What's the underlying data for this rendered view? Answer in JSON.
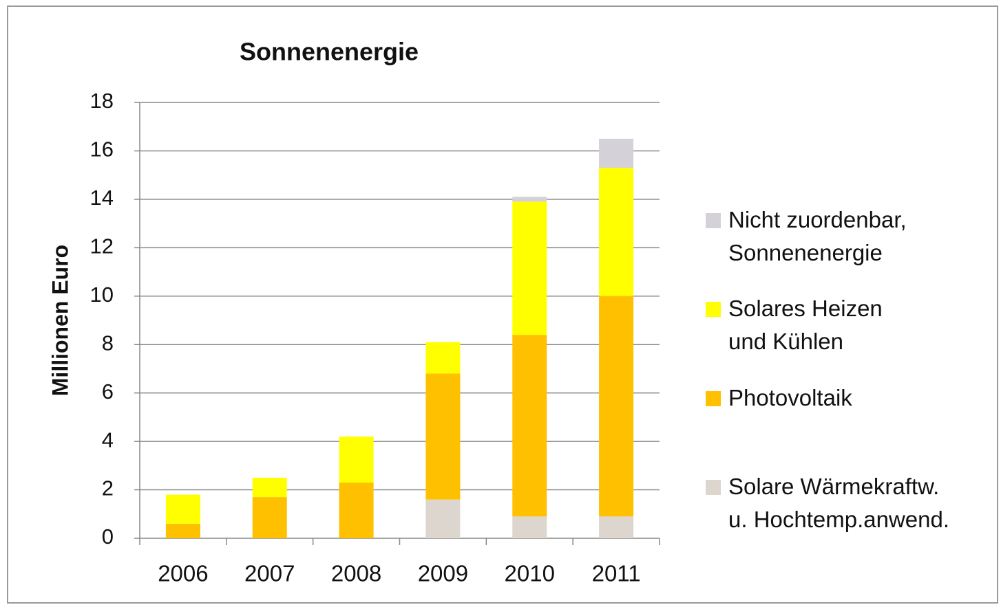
{
  "chart_data": {
    "type": "stacked_bar",
    "title": "Sonnenenergie",
    "y_label": "Millionen Euro",
    "categories": [
      "2006",
      "2007",
      "2008",
      "2009",
      "2010",
      "2011"
    ],
    "series": [
      {
        "name": "Solare Wärmekraftw.\nu. Hochtemp.anwend.",
        "color": "#dcd6cf",
        "values": [
          0,
          0,
          0,
          1.6,
          0.9,
          0.9
        ]
      },
      {
        "name": "Photovoltaik",
        "color": "#ffc000",
        "values": [
          0.6,
          1.7,
          2.3,
          5.2,
          7.5,
          9.1
        ]
      },
      {
        "name": "Solares Heizen\nund Kühlen",
        "color": "#ffff00",
        "values": [
          1.2,
          0.8,
          1.9,
          1.3,
          5.5,
          5.3
        ]
      },
      {
        "name": "Nicht zuordenbar,\nSonnenenergie",
        "color": "#d4d1d8",
        "values": [
          0,
          0,
          0,
          0,
          0.2,
          1.2
        ]
      }
    ],
    "ylim": [
      0,
      18
    ],
    "yticks": [
      0,
      2,
      4,
      6,
      8,
      10,
      12,
      14,
      16,
      18
    ],
    "grid": true,
    "legend": "right"
  }
}
